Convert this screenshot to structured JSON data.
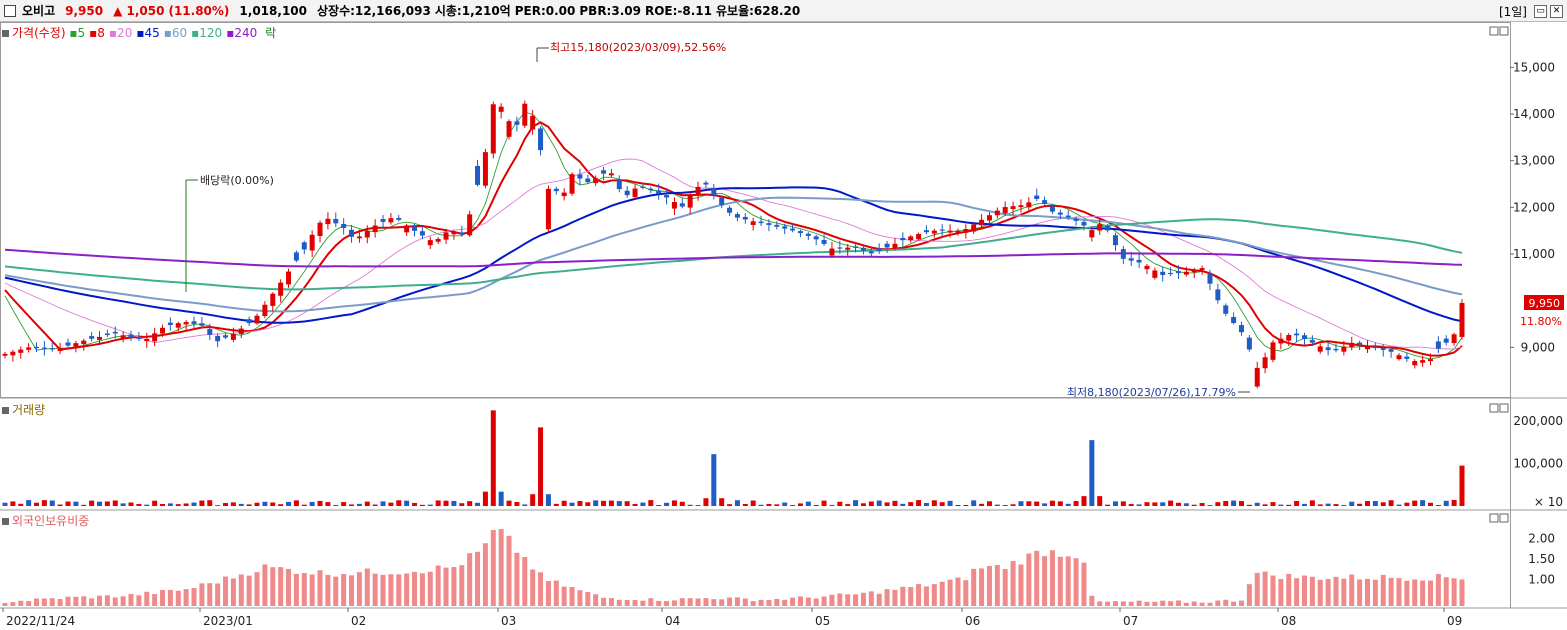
{
  "header": {
    "name": "오비고",
    "price": "9,950",
    "change": "▲ 1,050",
    "change_pct": "(11.80%)",
    "volume": "1,018,100",
    "shares": "상장수:12,166,093",
    "mktcap": "시총:1,210억",
    "per": "PER:0.00",
    "pbr": "PBR:3.09",
    "roe": "ROE:-8.11",
    "float": "유보율:628.20",
    "period": "[1일]"
  },
  "legend": {
    "price": "가격(수정)",
    "ma": [
      {
        "label": "5",
        "color": "#2ca02c"
      },
      {
        "label": "8",
        "color": "#e00000"
      },
      {
        "label": "20",
        "color": "#e07ad8"
      },
      {
        "label": "45",
        "color": "#0018c8"
      },
      {
        "label": "60",
        "color": "#7a9cc8"
      },
      {
        "label": "120",
        "color": "#3fae8e"
      },
      {
        "label": "240",
        "color": "#8a1ec8"
      }
    ],
    "ex": "락"
  },
  "volume_title": "거래량",
  "foreign_title": "외국인보유비중",
  "price_right_label": "9,950",
  "price_right_pct": "11.80%",
  "chart_data": {
    "type": "candlestick",
    "price_axis": {
      "ticks": [
        "15,000",
        "14,000",
        "13,000",
        "12,000",
        "11,000",
        "9,000"
      ],
      "values": [
        15000,
        14000,
        13000,
        12000,
        11000,
        9000
      ],
      "range": [
        8000,
        15800
      ]
    },
    "volume_axis": {
      "ticks": [
        "200,000",
        "100,000",
        "× 10"
      ],
      "values": [
        200000,
        100000,
        0
      ],
      "range": [
        0,
        240000
      ]
    },
    "foreign_axis": {
      "ticks": [
        "2.00",
        "1.50",
        "1.00"
      ],
      "values": [
        2.0,
        1.5,
        1.0
      ],
      "range": [
        0.35,
        2.6
      ]
    },
    "x_labels": [
      "2022/11/24",
      "2023/01",
      "02",
      "03",
      "04",
      "05",
      "06",
      "07",
      "08",
      "09"
    ],
    "annotations": {
      "high": "최고15,180(2023/03/09),52.56%",
      "low": "최저8,180(2023/07/26),17.79%",
      "dividend": "배당락(0.00%)"
    },
    "series_ref": [
      [
        0,
        8860
      ],
      [
        12,
        9000
      ],
      [
        25,
        8950
      ],
      [
        40,
        9150
      ],
      [
        55,
        9300
      ],
      [
        70,
        9150
      ],
      [
        80,
        9450
      ],
      [
        90,
        9550
      ],
      [
        100,
        9450
      ],
      [
        105,
        9100
      ],
      [
        115,
        9300
      ],
      [
        125,
        9600
      ],
      [
        140,
        10500
      ],
      [
        150,
        11100
      ],
      [
        155,
        11500
      ],
      [
        160,
        11800
      ],
      [
        170,
        11550
      ],
      [
        175,
        11300
      ],
      [
        185,
        11600
      ],
      [
        195,
        11800
      ],
      [
        205,
        11500
      ],
      [
        215,
        11250
      ],
      [
        222,
        11500
      ],
      [
        230,
        11400
      ],
      [
        240,
        13000
      ],
      [
        245,
        14300
      ],
      [
        250,
        14100
      ],
      [
        255,
        13600
      ],
      [
        262,
        14400
      ],
      [
        268,
        13300
      ],
      [
        272,
        12400
      ],
      [
        280,
        12300
      ],
      [
        285,
        12800
      ],
      [
        290,
        12500
      ],
      [
        295,
        12600
      ],
      [
        303,
        12800
      ],
      [
        310,
        12200
      ],
      [
        317,
        12450
      ],
      [
        325,
        12350
      ],
      [
        332,
        12200
      ],
      [
        340,
        12000
      ],
      [
        345,
        12400
      ],
      [
        351,
        12500
      ],
      [
        358,
        12100
      ],
      [
        365,
        11800
      ],
      [
        375,
        11700
      ],
      [
        385,
        11600
      ],
      [
        395,
        11500
      ],
      [
        405,
        11350
      ],
      [
        415,
        11100
      ],
      [
        425,
        11150
      ],
      [
        435,
        11000
      ],
      [
        445,
        11200
      ],
      [
        455,
        11400
      ],
      [
        465,
        11500
      ],
      [
        480,
        11500
      ],
      [
        500,
        12000
      ],
      [
        510,
        12050
      ],
      [
        518,
        12200
      ],
      [
        525,
        11900
      ],
      [
        535,
        11750
      ],
      [
        545,
        11500
      ],
      [
        550,
        11700
      ],
      [
        560,
        10900
      ],
      [
        570,
        10800
      ],
      [
        580,
        10550
      ],
      [
        590,
        10600
      ],
      [
        600,
        10700
      ],
      [
        610,
        9800
      ],
      [
        620,
        9300
      ],
      [
        628,
        8500
      ],
      [
        635,
        9100
      ],
      [
        645,
        9300
      ],
      [
        655,
        9100
      ],
      [
        665,
        8900
      ],
      [
        675,
        9100
      ],
      [
        685,
        9000
      ],
      [
        695,
        8900
      ],
      [
        705,
        8700
      ],
      [
        715,
        8750
      ],
      [
        720,
        9100
      ],
      [
        725,
        9100
      ],
      [
        730,
        9950
      ]
    ],
    "volume_peaks": [
      [
        245,
        225000
      ],
      [
        268,
        185000
      ],
      [
        357,
        122000
      ],
      [
        545,
        155000
      ],
      [
        730,
        95000
      ]
    ],
    "foreign_ref": [
      [
        0,
        0.45
      ],
      [
        30,
        0.55
      ],
      [
        60,
        0.6
      ],
      [
        90,
        0.75
      ],
      [
        110,
        1.0
      ],
      [
        130,
        1.3
      ],
      [
        160,
        1.15
      ],
      [
        200,
        1.2
      ],
      [
        225,
        1.3
      ],
      [
        240,
        1.75
      ],
      [
        246,
        2.25
      ],
      [
        255,
        1.8
      ],
      [
        270,
        1.0
      ],
      [
        290,
        0.7
      ],
      [
        300,
        0.55
      ],
      [
        330,
        0.5
      ],
      [
        355,
        0.55
      ],
      [
        380,
        0.5
      ],
      [
        400,
        0.55
      ],
      [
        430,
        0.65
      ],
      [
        460,
        0.85
      ],
      [
        480,
        1.0
      ],
      [
        488,
        1.3
      ],
      [
        500,
        1.3
      ],
      [
        520,
        1.7
      ],
      [
        540,
        1.6
      ],
      [
        545,
        0.45
      ],
      [
        600,
        0.45
      ],
      [
        620,
        0.5
      ],
      [
        625,
        1.15
      ],
      [
        650,
        1.05
      ],
      [
        700,
        1.05
      ],
      [
        730,
        1.05
      ]
    ]
  }
}
